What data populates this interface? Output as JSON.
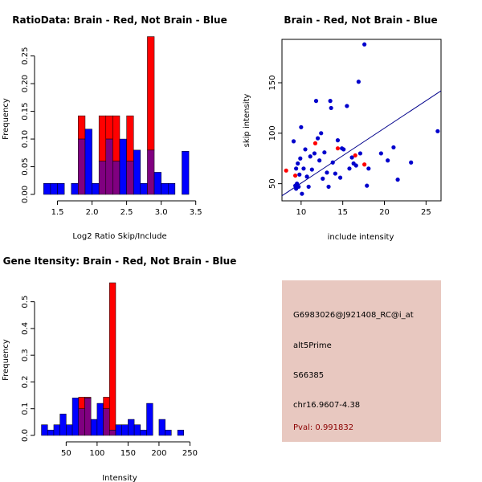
{
  "chart_data": [
    {
      "type": "histogram",
      "title": "RatioData: Brain - Red, Not Brain - Blue",
      "xlabel": "Log2 Ratio Skip/Include",
      "ylabel": "Frequency",
      "xlim": [
        1.25,
        3.55
      ],
      "ylim": [
        0,
        0.28
      ],
      "xticks": [
        "1.5",
        "2.0",
        "2.5",
        "3.0",
        "3.5"
      ],
      "yticks": [
        "0.00",
        "0.05",
        "0.10",
        "0.15",
        "0.20",
        "0.25"
      ],
      "bin_width": 0.1,
      "series": [
        {
          "name": "Not Brain",
          "color": "#0000ff",
          "bins": [
            {
              "x0": 1.3,
              "v": 0.02
            },
            {
              "x0": 1.4,
              "v": 0.02
            },
            {
              "x0": 1.5,
              "v": 0.02
            },
            {
              "x0": 1.7,
              "v": 0.02
            },
            {
              "x0": 1.8,
              "v": 0.1
            },
            {
              "x0": 1.9,
              "v": 0.118
            },
            {
              "x0": 2.0,
              "v": 0.02
            },
            {
              "x0": 2.1,
              "v": 0.06
            },
            {
              "x0": 2.2,
              "v": 0.1
            },
            {
              "x0": 2.3,
              "v": 0.06
            },
            {
              "x0": 2.4,
              "v": 0.1
            },
            {
              "x0": 2.5,
              "v": 0.06
            },
            {
              "x0": 2.6,
              "v": 0.08
            },
            {
              "x0": 2.7,
              "v": 0.02
            },
            {
              "x0": 2.8,
              "v": 0.08
            },
            {
              "x0": 2.9,
              "v": 0.04
            },
            {
              "x0": 3.0,
              "v": 0.02
            },
            {
              "x0": 3.1,
              "v": 0.02
            },
            {
              "x0": 3.3,
              "v": 0.078
            }
          ]
        },
        {
          "name": "Brain",
          "color": "#ff0000",
          "bins": [
            {
              "x0": 1.8,
              "v": 0.142
            },
            {
              "x0": 2.1,
              "v": 0.142
            },
            {
              "x0": 2.2,
              "v": 0.142
            },
            {
              "x0": 2.3,
              "v": 0.142
            },
            {
              "x0": 2.5,
              "v": 0.142
            },
            {
              "x0": 2.8,
              "v": 0.285
            }
          ]
        }
      ]
    },
    {
      "type": "scatter",
      "title": "Brain - Red, Not Brain - Blue",
      "xlabel": "include intensity",
      "ylabel": "skip intensity",
      "xlim": [
        7.7,
        26.8
      ],
      "ylim": [
        33,
        193
      ],
      "xticks": [
        "10",
        "15",
        "20",
        "25"
      ],
      "yticks": [
        "50",
        "100",
        "150"
      ],
      "regression_line": {
        "x": [
          7.7,
          26.8
        ],
        "y": [
          38,
          142
        ]
      },
      "series": [
        {
          "name": "Not Brain",
          "color": "#0000cc",
          "x": [
            9.1,
            9.3,
            9.4,
            9.5,
            9.7,
            9.8,
            9.6,
            9.4,
            9.9,
            10.0,
            10.1,
            10.3,
            10.5,
            10.7,
            10.9,
            11.1,
            11.3,
            11.6,
            11.8,
            12.0,
            12.2,
            12.4,
            12.6,
            12.8,
            13.1,
            13.3,
            13.5,
            13.6,
            13.8,
            14.1,
            14.4,
            14.7,
            14.9,
            15.1,
            15.5,
            15.8,
            16.1,
            16.3,
            16.6,
            16.9,
            17.1,
            17.6,
            17.9,
            18.1,
            19.6,
            20.4,
            21.1,
            21.6,
            23.2,
            26.4
          ],
          "y": [
            92,
            48,
            65,
            50,
            47,
            59,
            70,
            45,
            75,
            106,
            40,
            65,
            84,
            57,
            47,
            77,
            64,
            80,
            132,
            95,
            73,
            100,
            55,
            81,
            61,
            47,
            132,
            125,
            71,
            60,
            93,
            56,
            85,
            84,
            127,
            65,
            76,
            70,
            68,
            151,
            80,
            188,
            48,
            65,
            80,
            73,
            86,
            54,
            71,
            102
          ]
        },
        {
          "name": "Brain",
          "color": "#ff0000",
          "x": [
            8.2,
            9.3,
            11.7,
            14.4,
            16.5,
            17.6
          ],
          "y": [
            63,
            58,
            90,
            85,
            78,
            69
          ]
        }
      ]
    },
    {
      "type": "histogram",
      "title": "Gene Itensity: Brain - Red, Not Brain - Blue",
      "xlabel": "Intensity",
      "ylabel": "Frequency",
      "xlim": [
        8,
        265
      ],
      "ylim": [
        0,
        0.58
      ],
      "xticks": [
        "50",
        "100",
        "150",
        "200",
        "250"
      ],
      "yticks": [
        "0.0",
        "0.1",
        "0.2",
        "0.3",
        "0.4",
        "0.5"
      ],
      "bin_width": 10,
      "series": [
        {
          "name": "Not Brain",
          "color": "#0000ff",
          "bins": [
            {
              "x0": 10,
              "v": 0.04
            },
            {
              "x0": 20,
              "v": 0.02
            },
            {
              "x0": 30,
              "v": 0.04
            },
            {
              "x0": 40,
              "v": 0.08
            },
            {
              "x0": 50,
              "v": 0.04
            },
            {
              "x0": 60,
              "v": 0.14
            },
            {
              "x0": 70,
              "v": 0.1
            },
            {
              "x0": 80,
              "v": 0.14
            },
            {
              "x0": 90,
              "v": 0.06
            },
            {
              "x0": 100,
              "v": 0.12
            },
            {
              "x0": 110,
              "v": 0.1
            },
            {
              "x0": 120,
              "v": 0.02
            },
            {
              "x0": 130,
              "v": 0.04
            },
            {
              "x0": 140,
              "v": 0.04
            },
            {
              "x0": 150,
              "v": 0.06
            },
            {
              "x0": 160,
              "v": 0.04
            },
            {
              "x0": 170,
              "v": 0.02
            },
            {
              "x0": 180,
              "v": 0.12
            },
            {
              "x0": 200,
              "v": 0.06
            },
            {
              "x0": 210,
              "v": 0.02
            },
            {
              "x0": 230,
              "v": 0.02
            }
          ]
        },
        {
          "name": "Brain",
          "color": "#ff0000",
          "bins": [
            {
              "x0": 70,
              "v": 0.143
            },
            {
              "x0": 80,
              "v": 0.143
            },
            {
              "x0": 110,
              "v": 0.143
            },
            {
              "x0": 120,
              "v": 0.571
            }
          ]
        }
      ]
    }
  ],
  "info_panel": {
    "probe_id": "G6983026@J921408_RC@i_at",
    "event_type": "alt5Prime",
    "accession": "S66385",
    "location": "chr16.9607-4.38",
    "pval": "Pval: 0.991832"
  },
  "colors": {
    "overlap": "#800080",
    "panel_bg": "#e8c8c0",
    "pval": "#8b0000",
    "regression": "#00008b"
  }
}
